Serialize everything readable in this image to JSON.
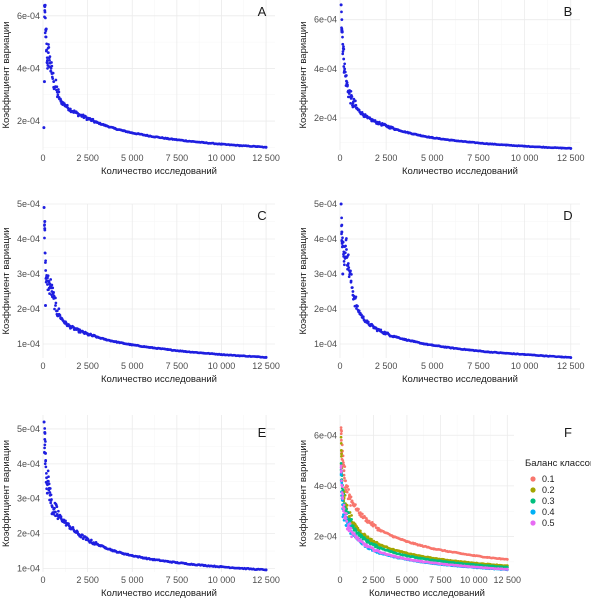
{
  "chart_data": [
    {
      "panel": "A",
      "type": "scatter",
      "xlabel": "Количество исследований",
      "ylabel": "Коэффициент вариации",
      "xlim": [
        0,
        13000
      ],
      "ylim": [
        9e-05,
        0.00066
      ],
      "xticks": [
        0,
        2500,
        5000,
        7500,
        10000,
        12500
      ],
      "xtick_labels": [
        "0",
        "2 500",
        "5 000",
        "7 500",
        "10 000",
        "12 500"
      ],
      "yticks": [
        0.0002,
        0.0004,
        0.0006
      ],
      "ytick_labels": [
        "2e-04",
        "4e-04",
        "6e-04"
      ],
      "grid": true,
      "color": "#1f1fe0",
      "series": [
        {
          "x": [
            100,
            150,
            200,
            250,
            300,
            350,
            400,
            450,
            500,
            600,
            700,
            800,
            900,
            1000,
            1250,
            1500,
            2000,
            2500,
            3000,
            3500,
            4000,
            4500,
            5000,
            6000,
            7000,
            8000,
            9000,
            10000,
            11000,
            12000,
            12500
          ],
          "y": [
            0.00062,
            0.00052,
            0.00047,
            0.00042,
            0.00046,
            0.00044,
            0.00042,
            0.0004,
            0.00038,
            0.00035,
            0.00033,
            0.00031,
            0.00029,
            0.000275,
            0.00026,
            0.000245,
            0.000225,
            0.00021,
            0.000195,
            0.000183,
            0.000172,
            0.000163,
            0.000155,
            0.000143,
            0.000133,
            0.000125,
            0.000118,
            0.000112,
            0.000107,
            0.000103,
            0.0001
          ]
        }
      ],
      "outliers": {
        "x": [
          50,
          80,
          120,
          180,
          250
        ],
        "y": [
          0.000175,
          0.00035,
          0.00064,
          0.00055,
          0.00043
        ]
      }
    },
    {
      "panel": "B",
      "type": "scatter",
      "xlabel": "Количество исследований",
      "ylabel": "Коэффициент вариации",
      "xlim": [
        0,
        13000
      ],
      "ylim": [
        7e-05,
        0.00068
      ],
      "xticks": [
        0,
        2500,
        5000,
        7500,
        10000,
        12500
      ],
      "xtick_labels": [
        "0",
        "2 500",
        "5 000",
        "7 500",
        "10 000",
        "12 500"
      ],
      "yticks": [
        0.0002,
        0.0004,
        0.0006
      ],
      "ytick_labels": [
        "2e-04",
        "4e-04",
        "6e-04"
      ],
      "grid": true,
      "color": "#1f1fe0",
      "series": [
        {
          "x": [
            100,
            150,
            200,
            250,
            300,
            350,
            400,
            450,
            500,
            600,
            700,
            800,
            900,
            1000,
            1250,
            1500,
            2000,
            2500,
            3000,
            3500,
            4000,
            4500,
            5000,
            6000,
            7000,
            8000,
            9000,
            10000,
            11000,
            12000,
            12500
          ],
          "y": [
            0.0006,
            0.0005,
            0.00044,
            0.0004,
            0.00037,
            0.00035,
            0.00033,
            0.00031,
            0.0003,
            0.00028,
            0.00026,
            0.00025,
            0.00024,
            0.000232,
            0.000215,
            0.0002,
            0.000182,
            0.000168,
            0.000155,
            0.000144,
            0.000135,
            0.000127,
            0.00012,
            0.00011,
            0.000102,
            9.55e-05,
            9e-05,
            8.55e-05,
            8.15e-05,
            7.8e-05,
            7.65e-05
          ]
        }
      ],
      "outliers": {
        "x": [
          60,
          120,
          200
        ],
        "y": [
          0.00066,
          0.00055,
          0.00048
        ]
      }
    },
    {
      "panel": "C",
      "type": "scatter",
      "xlabel": "Количество исследований",
      "ylabel": "Коэффициент вариации",
      "xlim": [
        0,
        13000
      ],
      "ylim": [
        6e-05,
        0.0005
      ],
      "xticks": [
        0,
        2500,
        5000,
        7500,
        10000,
        12500
      ],
      "xtick_labels": [
        "0",
        "2 500",
        "5 000",
        "7 500",
        "10 000",
        "12 500"
      ],
      "yticks": [
        0.0001,
        0.0002,
        0.0003,
        0.0004,
        0.0005
      ],
      "ytick_labels": [
        "1e-04",
        "2e-04",
        "3e-04",
        "4e-04",
        "5e-04"
      ],
      "grid": true,
      "color": "#1f1fe0",
      "series": [
        {
          "x": [
            100,
            150,
            200,
            250,
            300,
            350,
            400,
            450,
            500,
            600,
            700,
            800,
            900,
            1000,
            1250,
            1500,
            2000,
            2500,
            3000,
            3500,
            4000,
            4500,
            5000,
            6000,
            7000,
            8000,
            9000,
            10000,
            11000,
            12000,
            12500
          ],
          "y": [
            0.00043,
            0.00031,
            0.00028,
            0.00027,
            0.00028,
            0.00026,
            0.00027,
            0.00026,
            0.00025,
            0.00023,
            0.00021,
            0.000195,
            0.000185,
            0.000175,
            0.00016,
            0.00015,
            0.000138,
            0.000128,
            0.00012,
            0.000113,
            0.000107,
            0.000102,
            9.75e-05,
            9e-05,
            8.4e-05,
            7.85e-05,
            7.4e-05,
            7e-05,
            6.65e-05,
            6.35e-05,
            6.2e-05
          ]
        }
      ],
      "outliers": {
        "x": [
          60,
          100,
          140,
          200
        ],
        "y": [
          0.00049,
          0.00045,
          0.00021,
          0.00029
        ]
      }
    },
    {
      "panel": "D",
      "type": "scatter",
      "xlabel": "Количество исследований",
      "ylabel": "Коэффициент вариации",
      "xlim": [
        0,
        13000
      ],
      "ylim": [
        6e-05,
        0.0005
      ],
      "xticks": [
        0,
        2500,
        5000,
        7500,
        10000,
        12500
      ],
      "xtick_labels": [
        "0",
        "2 500",
        "5 000",
        "7 500",
        "10 000",
        "12 500"
      ],
      "yticks": [
        0.0001,
        0.0002,
        0.0003,
        0.0004,
        0.0005
      ],
      "ytick_labels": [
        "1e-04",
        "2e-04",
        "3e-04",
        "4e-04",
        "5e-04"
      ],
      "grid": true,
      "color": "#1f1fe0",
      "series": [
        {
          "x": [
            100,
            150,
            200,
            250,
            300,
            350,
            400,
            450,
            500,
            600,
            700,
            800,
            900,
            1000,
            1250,
            1500,
            2000,
            2500,
            3000,
            3500,
            4000,
            4500,
            5000,
            6000,
            7000,
            8000,
            9000,
            10000,
            11000,
            12000,
            12500
          ],
          "y": [
            0.00044,
            0.00038,
            0.00035,
            0.00036,
            0.00038,
            0.00037,
            0.00035,
            0.00033,
            0.00031,
            0.00028,
            0.00025,
            0.00023,
            0.00021,
            0.000195,
            0.000175,
            0.00016,
            0.000142,
            0.00013,
            0.000121,
            0.000113,
            0.000107,
            0.000101,
            9.65e-05,
            8.9e-05,
            8.3e-05,
            7.75e-05,
            7.35e-05,
            7e-05,
            6.65e-05,
            6.3e-05,
            6.15e-05
          ]
        }
      ],
      "outliers": {
        "x": [
          60,
          100,
          150
        ],
        "y": [
          0.0005,
          0.00042,
          0.0003
        ]
      }
    },
    {
      "panel": "E",
      "type": "scatter",
      "xlabel": "Количество исследований",
      "ylabel": "Коэффициент вариации",
      "xlim": [
        0,
        13000
      ],
      "ylim": [
        9e-05,
        0.00054
      ],
      "xticks": [
        0,
        2500,
        5000,
        7500,
        10000,
        12500
      ],
      "xtick_labels": [
        "0",
        "2 500",
        "5 000",
        "7 500",
        "10 000",
        "12 500"
      ],
      "yticks": [
        0.0001,
        0.0002,
        0.0003,
        0.0004,
        0.0005
      ],
      "ytick_labels": [
        "1e-04",
        "2e-04",
        "3e-04",
        "4e-04",
        "5e-04"
      ],
      "grid": true,
      "color": "#1f1fe0",
      "series": [
        {
          "x": [
            100,
            150,
            200,
            250,
            300,
            350,
            400,
            450,
            500,
            600,
            700,
            800,
            900,
            1000,
            1250,
            1500,
            2000,
            2500,
            3000,
            3500,
            4000,
            4500,
            5000,
            6000,
            7000,
            8000,
            9000,
            10000,
            11000,
            12000,
            12500
          ],
          "y": [
            0.00047,
            0.00041,
            0.00036,
            0.00034,
            0.00035,
            0.00033,
            0.00031,
            0.000295,
            0.00028,
            0.00027,
            0.000262,
            0.000255,
            0.00025,
            0.000245,
            0.000232,
            0.00022,
            0.000198,
            0.000182,
            0.00017,
            0.00016,
            0.00015,
            0.000143,
            0.000137,
            0.000127,
            0.00012,
            0.000114,
            0.000109,
            0.000105,
            0.000101,
            9.75e-05,
            9.65e-05
          ]
        }
      ],
      "outliers": {
        "x": [
          60,
          100,
          140
        ],
        "y": [
          0.00052,
          0.00049,
          0.00043
        ]
      }
    },
    {
      "panel": "F",
      "type": "scatter",
      "xlabel": "Количество исследований",
      "ylabel": "Коэффициент вариации",
      "xlim": [
        0,
        13000
      ],
      "ylim": [
        6e-05,
        0.00068
      ],
      "xticks": [
        0,
        2500,
        5000,
        7500,
        10000,
        12500
      ],
      "xtick_labels": [
        "0",
        "2 500",
        "5 000",
        "7 500",
        "10 000",
        "12 500"
      ],
      "yticks": [
        0.0002,
        0.0004,
        0.0006
      ],
      "ytick_labels": [
        "2e-04",
        "4e-04",
        "6e-04"
      ],
      "grid": true,
      "legend": {
        "title": "Баланс классов:",
        "position": "right"
      },
      "series": [
        {
          "name": "0.1",
          "color": "#f8766d",
          "x": [
            100,
            200,
            300,
            400,
            500,
            700,
            1000,
            1500,
            2000,
            2500,
            3000,
            4000,
            5000,
            6000,
            7000,
            8000,
            9000,
            10000,
            11000,
            12000,
            12500
          ],
          "y": [
            0.00058,
            0.00048,
            0.00046,
            0.00042,
            0.0004,
            0.00036,
            0.00033,
            0.00029,
            0.000265,
            0.000245,
            0.000225,
            0.0002,
            0.00018,
            0.000165,
            0.000152,
            0.000142,
            0.000133,
            0.000125,
            0.000118,
            0.000112,
            0.00011
          ]
        },
        {
          "name": "0.2",
          "color": "#a3a500",
          "x": [
            100,
            200,
            300,
            400,
            500,
            700,
            1000,
            1500,
            2000,
            2500,
            3000,
            4000,
            5000,
            6000,
            7000,
            8000,
            9000,
            10000,
            11000,
            12000,
            12500
          ],
          "y": [
            0.00054,
            0.00038,
            0.00035,
            0.00033,
            0.00031,
            0.00028,
            0.00025,
            0.00022,
            0.000198,
            0.00018,
            0.000167,
            0.000148,
            0.000134,
            0.000123,
            0.000114,
            0.000107,
            0.000101,
            9.55e-05,
            9.1e-05,
            8.65e-05,
            8.45e-05
          ]
        },
        {
          "name": "0.3",
          "color": "#00bf7d",
          "x": [
            100,
            200,
            300,
            400,
            500,
            700,
            1000,
            1500,
            2000,
            2500,
            3000,
            4000,
            5000,
            6000,
            7000,
            8000,
            9000,
            10000,
            11000,
            12000,
            12500
          ],
          "y": [
            0.00045,
            0.00036,
            0.00033,
            0.00031,
            0.00029,
            0.00026,
            0.000235,
            0.000205,
            0.000183,
            0.000167,
            0.000155,
            0.000137,
            0.000124,
            0.000114,
            0.000106,
            9.95e-05,
            9.4e-05,
            8.9e-05,
            8.45e-05,
            8.05e-05,
            7.9e-05
          ]
        },
        {
          "name": "0.4",
          "color": "#00b0f6",
          "x": [
            100,
            200,
            300,
            400,
            500,
            700,
            1000,
            1500,
            2000,
            2500,
            3000,
            4000,
            5000,
            6000,
            7000,
            8000,
            9000,
            10000,
            11000,
            12000,
            12500
          ],
          "y": [
            0.00042,
            0.00031,
            0.00028,
            0.00027,
            0.00026,
            0.00024,
            0.00021,
            0.00018,
            0.00016,
            0.000146,
            0.000135,
            0.00012,
            0.000109,
            0.0001,
            9.35e-05,
            8.75e-05,
            8.25e-05,
            7.8e-05,
            7.4e-05,
            7.05e-05,
            6.9e-05
          ]
        },
        {
          "name": "0.5",
          "color": "#e76bf3",
          "x": [
            100,
            200,
            300,
            400,
            500,
            700,
            1000,
            1500,
            2000,
            2500,
            3000,
            4000,
            5000,
            6000,
            7000,
            8000,
            9000,
            10000,
            11000,
            12000,
            12500
          ],
          "y": [
            0.00046,
            0.00035,
            0.00031,
            0.00028,
            0.00026,
            0.000235,
            0.00021,
            0.000182,
            0.000163,
            0.000149,
            0.000138,
            0.000123,
            0.000111,
            0.000102,
            9.55e-05,
            8.95e-05,
            8.45e-05,
            8e-05,
            7.6e-05,
            7.25e-05,
            7.1e-05
          ]
        }
      ]
    }
  ]
}
